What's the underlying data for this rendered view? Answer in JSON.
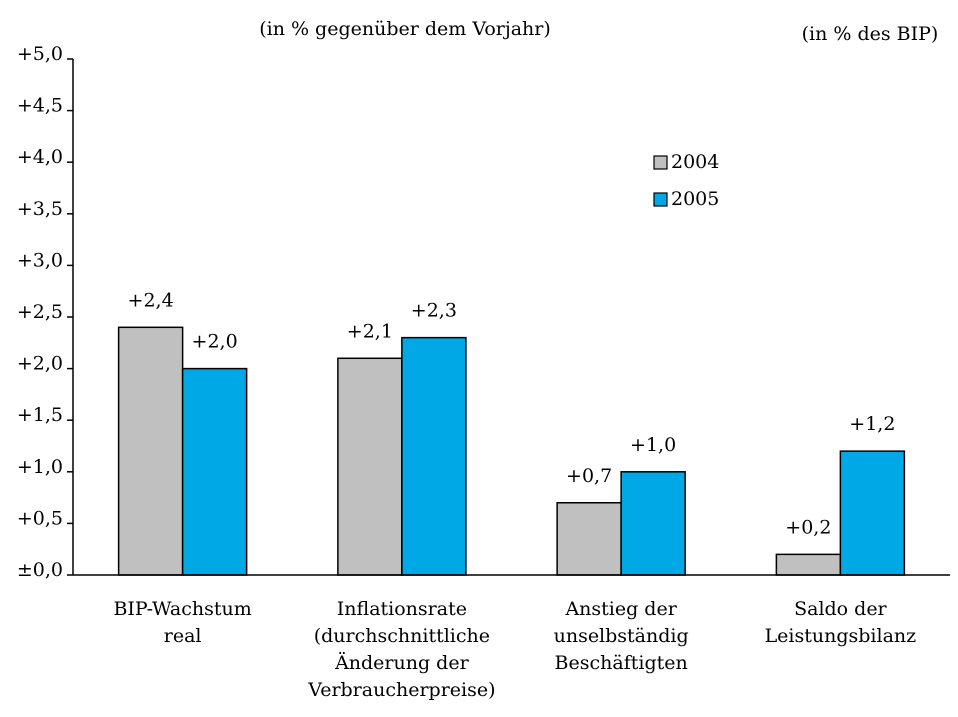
{
  "chart_data": {
    "type": "bar",
    "annotations": [
      "(in % gegenüber dem Vorjahr)",
      "(in % des BIP)"
    ],
    "categories": [
      [
        "BIP-Wachstum",
        "real"
      ],
      [
        "Inflationsrate",
        "(durchschnittliche",
        "Änderung der",
        "Verbraucherpreise)"
      ],
      [
        "Anstieg der",
        "unselbständig",
        "Beschäftigten"
      ],
      [
        "Saldo der",
        "Leistungsbilanz"
      ]
    ],
    "series": [
      {
        "name": "2004",
        "color": "#c0c0c0",
        "values": [
          2.4,
          2.1,
          0.7,
          0.2
        ],
        "value_labels": [
          "+2,4",
          "+2,1",
          "+0,7",
          "+0,2"
        ]
      },
      {
        "name": "2005",
        "color": "#00a9e6",
        "values": [
          2.0,
          2.3,
          1.0,
          1.2
        ],
        "value_labels": [
          "+2,0",
          "+2,3",
          "+1,0",
          "+1,2"
        ]
      }
    ],
    "ylim": [
      0,
      5
    ],
    "yticks": [
      {
        "value": 0,
        "label": "±0,0"
      },
      {
        "value": 0.5,
        "label": "+0,5"
      },
      {
        "value": 1,
        "label": "+1,0"
      },
      {
        "value": 1.5,
        "label": "+1,5"
      },
      {
        "value": 2,
        "label": "+2,0"
      },
      {
        "value": 2.5,
        "label": "+2,5"
      },
      {
        "value": 3,
        "label": "+3,0"
      },
      {
        "value": 3.5,
        "label": "+3,5"
      },
      {
        "value": 4,
        "label": "+4,0"
      },
      {
        "value": 4.5,
        "label": "+4,5"
      },
      {
        "value": 5,
        "label": "+5,0"
      }
    ],
    "grid": false,
    "legend": "upper-right"
  }
}
